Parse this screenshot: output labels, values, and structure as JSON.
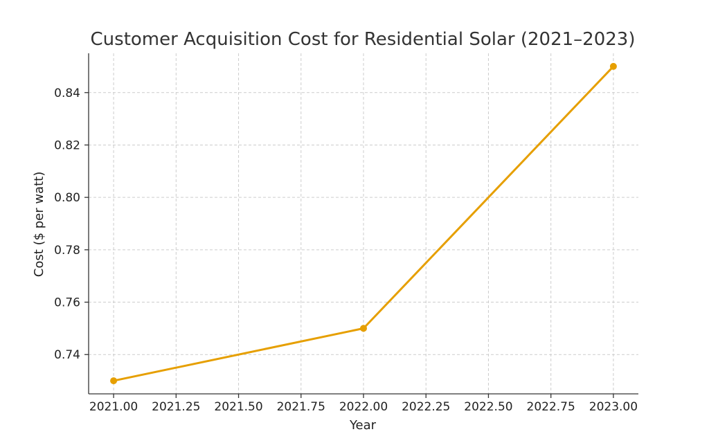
{
  "chart_data": {
    "type": "line",
    "title": "Customer Acquisition Cost for Residential Solar (2021–2023)",
    "xlabel": "Year",
    "ylabel": "Cost ($ per watt)",
    "xlim": [
      2020.9,
      2023.1
    ],
    "ylim": [
      0.725,
      0.855
    ],
    "xticks": [
      2021.0,
      2021.25,
      2021.5,
      2021.75,
      2022.0,
      2022.25,
      2022.5,
      2022.75,
      2023.0
    ],
    "xtick_labels": [
      "2021.00",
      "2021.25",
      "2021.50",
      "2021.75",
      "2022.00",
      "2022.25",
      "2022.50",
      "2022.75",
      "2023.00"
    ],
    "yticks": [
      0.74,
      0.76,
      0.78,
      0.8,
      0.82,
      0.84
    ],
    "ytick_labels": [
      "0.74",
      "0.76",
      "0.78",
      "0.80",
      "0.82",
      "0.84"
    ],
    "grid": true,
    "color": "#e69f00",
    "series": [
      {
        "x": [
          2021,
          2022,
          2023
        ],
        "y": [
          0.73,
          0.75,
          0.85
        ]
      }
    ]
  }
}
